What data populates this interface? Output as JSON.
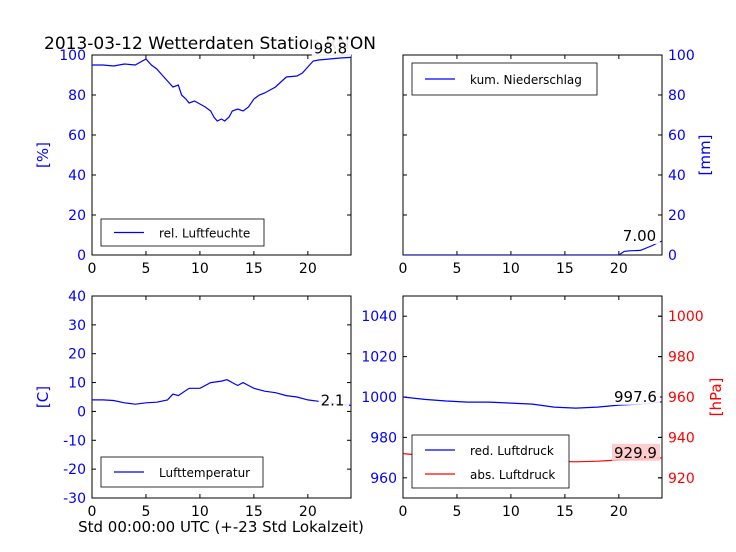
{
  "figure": {
    "title": "2013-03-12 Wetterdaten Station RNON",
    "xlabel": "Std 00:00:00 UTC (+-23 Std Lokalzeit)"
  },
  "colors": {
    "blue": "#0000ff",
    "red": "#ff0000",
    "axis": "#000000",
    "label_box_bg": "#ffffff",
    "red_label_box_bg": "#ffc8c8"
  },
  "chart_data": [
    {
      "id": "humidity",
      "type": "line",
      "xlim": [
        0,
        24
      ],
      "ylim": [
        0,
        100
      ],
      "xticks": [
        0,
        5,
        10,
        15,
        20
      ],
      "yticks": [
        0,
        20,
        40,
        60,
        80,
        100
      ],
      "ylabel": "[%]",
      "ylabel_side": "left",
      "tick_color": "#0000ff",
      "legend_location": "lower-left",
      "last_value_label": "98.8",
      "series": [
        {
          "name": "rel. Luftfeuchte",
          "color": "#0000ff",
          "points": [
            [
              0,
              95
            ],
            [
              1,
              95
            ],
            [
              2,
              94.5
            ],
            [
              3,
              95.5
            ],
            [
              4,
              95
            ],
            [
              5,
              98
            ],
            [
              5.5,
              95
            ],
            [
              6,
              93
            ],
            [
              6.5,
              90
            ],
            [
              7,
              87
            ],
            [
              7.5,
              84
            ],
            [
              8,
              85
            ],
            [
              8.3,
              80
            ],
            [
              8.7,
              78
            ],
            [
              9,
              76
            ],
            [
              9.5,
              77
            ],
            [
              10,
              75.5
            ],
            [
              10.5,
              74
            ],
            [
              11,
              72
            ],
            [
              11.3,
              69
            ],
            [
              11.6,
              67
            ],
            [
              12,
              68
            ],
            [
              12.3,
              67
            ],
            [
              12.7,
              69
            ],
            [
              13,
              72
            ],
            [
              13.5,
              73
            ],
            [
              14,
              72
            ],
            [
              14.5,
              74
            ],
            [
              15,
              78
            ],
            [
              15.5,
              80
            ],
            [
              16,
              81
            ],
            [
              17,
              84
            ],
            [
              18,
              89
            ],
            [
              19,
              89.5
            ],
            [
              19.5,
              91
            ],
            [
              20,
              94
            ],
            [
              20.5,
              97
            ],
            [
              21,
              97.5
            ],
            [
              22,
              98
            ],
            [
              23,
              98.5
            ],
            [
              24,
              98.8
            ]
          ]
        }
      ]
    },
    {
      "id": "precipitation",
      "type": "line",
      "xlim": [
        0,
        24
      ],
      "ylim": [
        0,
        100
      ],
      "xticks": [
        0,
        5,
        10,
        15,
        20
      ],
      "yticks": [
        0,
        20,
        40,
        60,
        80,
        100
      ],
      "ylabel": "[mm]",
      "ylabel_side": "right",
      "tick_color": "#0000ff",
      "legend_location": "top-left",
      "last_value_label": "7.00",
      "series": [
        {
          "name": "kum. Niederschlag",
          "color": "#0000ff",
          "points": [
            [
              0,
              0
            ],
            [
              20,
              0
            ],
            [
              20.5,
              1.8
            ],
            [
              21,
              2.1
            ],
            [
              22,
              2.3
            ],
            [
              23,
              4.5
            ],
            [
              24,
              7
            ]
          ]
        }
      ]
    },
    {
      "id": "temperature",
      "type": "line",
      "xlim": [
        0,
        24
      ],
      "ylim": [
        -30,
        40
      ],
      "xticks": [
        0,
        5,
        10,
        15,
        20
      ],
      "yticks": [
        -30,
        -20,
        -10,
        0,
        10,
        20,
        30,
        40
      ],
      "ylabel": "[C]",
      "ylabel_side": "left",
      "tick_color": "#0000ff",
      "legend_location": "lower-left",
      "last_value_label": "2.1",
      "series": [
        {
          "name": "Lufttemperatur",
          "color": "#0000ff",
          "points": [
            [
              0,
              4
            ],
            [
              1,
              4
            ],
            [
              2,
              3.8
            ],
            [
              3,
              3
            ],
            [
              4,
              2.5
            ],
            [
              5,
              3
            ],
            [
              6,
              3.2
            ],
            [
              7,
              4
            ],
            [
              7.5,
              6
            ],
            [
              8,
              5.5
            ],
            [
              9,
              8
            ],
            [
              10,
              8
            ],
            [
              11,
              10
            ],
            [
              12,
              10.5
            ],
            [
              12.5,
              11
            ],
            [
              13,
              10
            ],
            [
              13.5,
              9
            ],
            [
              14,
              10
            ],
            [
              14.5,
              9
            ],
            [
              15,
              8
            ],
            [
              16,
              7
            ],
            [
              17,
              6.5
            ],
            [
              18,
              5.5
            ],
            [
              19,
              5
            ],
            [
              20,
              4
            ],
            [
              21,
              3.5
            ],
            [
              22,
              3
            ],
            [
              23,
              2.5
            ],
            [
              24,
              2.1
            ]
          ]
        }
      ]
    },
    {
      "id": "pressure",
      "type": "line",
      "xlim": [
        0,
        24
      ],
      "ylim": [
        950,
        1050
      ],
      "y2lim": [
        910,
        1010
      ],
      "xticks": [
        0,
        5,
        10,
        15,
        20
      ],
      "yticks": [
        960,
        980,
        1000,
        1020,
        1040
      ],
      "y2ticks": [
        920,
        940,
        960,
        980,
        1000
      ],
      "ylabel": "",
      "y2label": "[hPa]",
      "tick_color": "#0000ff",
      "tick2_color": "#ff0000",
      "legend_location": "lower-left",
      "last_value_label": "997.6",
      "last_value_label2": "929.9",
      "series": [
        {
          "name": "red. Luftdruck",
          "color": "#0000ff",
          "axis": "left",
          "points": [
            [
              0,
              1000
            ],
            [
              2,
              998.8
            ],
            [
              4,
              998
            ],
            [
              6,
              997.5
            ],
            [
              8,
              997.5
            ],
            [
              10,
              997
            ],
            [
              12,
              996.5
            ],
            [
              14,
              995
            ],
            [
              16,
              994.5
            ],
            [
              18,
              995
            ],
            [
              19,
              995.5
            ],
            [
              20,
              996
            ],
            [
              22,
              996.5
            ],
            [
              24,
              997.6
            ]
          ]
        },
        {
          "name": "abs. Luftdruck",
          "color": "#ff0000",
          "axis": "right",
          "points": [
            [
              0,
              932
            ],
            [
              2,
              931
            ],
            [
              4,
              930
            ],
            [
              6,
              929.6
            ],
            [
              8,
              929.7
            ],
            [
              10,
              929.3
            ],
            [
              12,
              928.8
            ],
            [
              14,
              928.2
            ],
            [
              16,
              927.9
            ],
            [
              18,
              928.2
            ],
            [
              20,
              928.8
            ],
            [
              22,
              929.3
            ],
            [
              24,
              929.9
            ]
          ]
        }
      ]
    }
  ]
}
